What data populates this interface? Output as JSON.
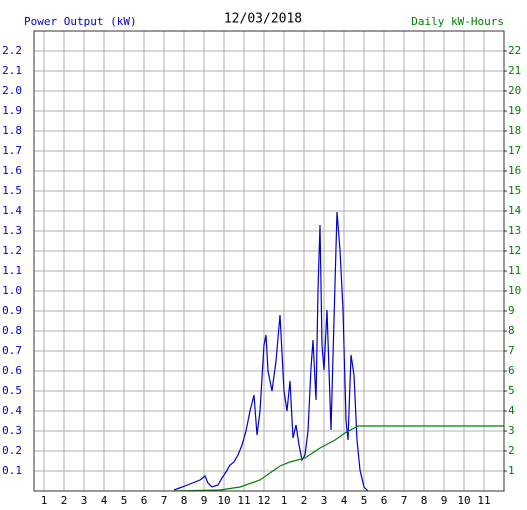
{
  "chart_data": {
    "type": "line",
    "title": "12/03/2018",
    "y_label": "Power Output (kW)",
    "y2_label": "Daily kW-Hours",
    "xlim": [
      0.5,
      24
    ],
    "xticks": [
      1,
      2,
      3,
      4,
      5,
      6,
      7,
      8,
      9,
      10,
      11,
      12,
      {
        "value": 13,
        "label": "1"
      },
      {
        "value": 14,
        "label": "2"
      },
      {
        "value": 15,
        "label": "3"
      },
      {
        "value": 16,
        "label": "4"
      },
      {
        "value": 17,
        "label": "5"
      },
      {
        "value": 18,
        "label": "6"
      },
      {
        "value": 19,
        "label": "7"
      },
      {
        "value": 20,
        "label": "8"
      },
      {
        "value": 21,
        "label": "9"
      },
      {
        "value": 22,
        "label": "10"
      },
      {
        "value": 23,
        "label": "11"
      }
    ],
    "ylim": [
      0,
      2.3
    ],
    "yticks": [
      0.1,
      0.2,
      0.3,
      0.4,
      0.5,
      0.6,
      0.7,
      0.8,
      0.9,
      {
        "value": 1,
        "label": "1.0"
      },
      1.1,
      1.2,
      1.3,
      1.4,
      1.5,
      1.6,
      1.7,
      1.8,
      1.9,
      {
        "value": 2,
        "label": "2.0"
      },
      2.1,
      2.2
    ],
    "y2lim": [
      0,
      23
    ],
    "y2ticks": [
      1,
      2,
      3,
      4,
      5,
      6,
      7,
      8,
      9,
      10,
      11,
      12,
      13,
      14,
      15,
      16,
      17,
      18,
      19,
      20,
      21,
      22
    ],
    "grid": true,
    "series": [
      {
        "name": "Power Output (kW)",
        "color": "#0000cc",
        "x": [
          7.5,
          8.05,
          8.8,
          9.05,
          9.2,
          9.4,
          9.7,
          9.9,
          10.1,
          10.3,
          10.5,
          10.7,
          10.9,
          11.1,
          11.3,
          11.5,
          11.65,
          11.8,
          12.0,
          12.1,
          12.2,
          12.4,
          12.6,
          12.8,
          13.0,
          13.15,
          13.3,
          13.45,
          13.6,
          13.75,
          13.9,
          14.05,
          14.2,
          14.35,
          14.45,
          14.6,
          14.7,
          14.8,
          14.9,
          15.0,
          15.15,
          15.35,
          15.5,
          15.65,
          15.8,
          15.95,
          16.1,
          16.2,
          16.35,
          16.5,
          16.65,
          16.8,
          17.0,
          17.2
        ],
        "values": [
          0.005,
          0.025,
          0.055,
          0.075,
          0.04,
          0.02,
          0.03,
          0.065,
          0.095,
          0.13,
          0.145,
          0.18,
          0.23,
          0.3,
          0.4,
          0.48,
          0.28,
          0.4,
          0.73,
          0.78,
          0.6,
          0.5,
          0.65,
          0.88,
          0.5,
          0.4,
          0.55,
          0.265,
          0.33,
          0.23,
          0.155,
          0.18,
          0.3,
          0.615,
          0.755,
          0.455,
          1.005,
          1.33,
          0.73,
          0.605,
          0.905,
          0.305,
          0.855,
          1.395,
          1.205,
          0.905,
          0.355,
          0.255,
          0.68,
          0.58,
          0.255,
          0.105,
          0.02,
          0
        ]
      },
      {
        "name": "Daily kW-Hours",
        "color": "#008000",
        "axis": "y2",
        "x": [
          7.5,
          9.8,
          10.8,
          11.8,
          12.8,
          13.3,
          14.05,
          14.8,
          15.55,
          16.05,
          16.7,
          17.05,
          24
        ],
        "values": [
          0,
          0.05,
          0.2,
          0.55,
          1.25,
          1.45,
          1.65,
          2.15,
          2.55,
          2.9,
          3.25,
          3.25,
          3.25
        ]
      }
    ]
  }
}
